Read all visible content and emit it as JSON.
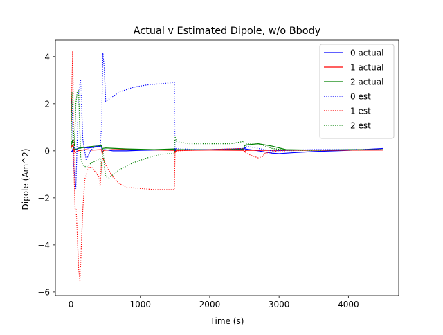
{
  "chart_data": {
    "type": "line",
    "title": "Actual v Estimated Dipole, w/o Bbody",
    "xlabel": "Time (s)",
    "ylabel": "Dipole (Am^2)",
    "xlim": [
      -225,
      4725
    ],
    "ylim": [
      -6.15,
      4.7
    ],
    "x_ticks": [
      0,
      1000,
      2000,
      3000,
      4000
    ],
    "x_tick_labels": [
      "0",
      "1000",
      "2000",
      "3000",
      "4000"
    ],
    "y_ticks": [
      -6,
      -4,
      -2,
      0,
      2,
      4
    ],
    "y_tick_labels": [
      "−6",
      "−4",
      "−2",
      "0",
      "2",
      "4"
    ],
    "grid": false,
    "legend_position": "top-right",
    "series": [
      {
        "name": "0 actual",
        "color": "#0000ff",
        "style": "solid",
        "points": [
          [
            0,
            0.0
          ],
          [
            15,
            -0.05
          ],
          [
            30,
            0.1
          ],
          [
            50,
            0.15
          ],
          [
            70,
            0.05
          ],
          [
            100,
            0.1
          ],
          [
            150,
            0.15
          ],
          [
            250,
            0.12
          ],
          [
            400,
            0.18
          ],
          [
            440,
            0.2
          ],
          [
            450,
            -0.05
          ],
          [
            480,
            0.05
          ],
          [
            600,
            0.0
          ],
          [
            800,
            0.0
          ],
          [
            1000,
            0.02
          ],
          [
            1200,
            0.03
          ],
          [
            1490,
            0.05
          ],
          [
            1500,
            0.1
          ],
          [
            1510,
            0.05
          ],
          [
            1800,
            0.05
          ],
          [
            2000,
            0.05
          ],
          [
            2200,
            0.05
          ],
          [
            2490,
            0.05
          ],
          [
            2500,
            0.15
          ],
          [
            2510,
            0.08
          ],
          [
            2700,
            0.0
          ],
          [
            2900,
            -0.1
          ],
          [
            3000,
            -0.12
          ],
          [
            3200,
            -0.08
          ],
          [
            3500,
            -0.03
          ],
          [
            3800,
            0.0
          ],
          [
            4000,
            0.02
          ],
          [
            4200,
            0.05
          ],
          [
            4500,
            0.1
          ]
        ]
      },
      {
        "name": "1 actual",
        "color": "#ff0000",
        "style": "solid",
        "points": [
          [
            0,
            0.1
          ],
          [
            20,
            0.25
          ],
          [
            40,
            0.05
          ],
          [
            60,
            -0.08
          ],
          [
            100,
            0.0
          ],
          [
            200,
            0.05
          ],
          [
            300,
            0.03
          ],
          [
            440,
            0.05
          ],
          [
            450,
            -0.12
          ],
          [
            470,
            0.02
          ],
          [
            600,
            0.05
          ],
          [
            1000,
            0.05
          ],
          [
            1490,
            0.02
          ],
          [
            1500,
            -0.08
          ],
          [
            1510,
            0.02
          ],
          [
            2000,
            0.03
          ],
          [
            2490,
            0.02
          ],
          [
            2500,
            -0.05
          ],
          [
            2520,
            0.02
          ],
          [
            3000,
            0.02
          ],
          [
            4500,
            0.03
          ]
        ]
      },
      {
        "name": "2 actual",
        "color": "#008000",
        "style": "solid",
        "points": [
          [
            0,
            0.2
          ],
          [
            20,
            0.45
          ],
          [
            40,
            0.1
          ],
          [
            60,
            0.05
          ],
          [
            100,
            0.1
          ],
          [
            200,
            0.15
          ],
          [
            350,
            0.2
          ],
          [
            440,
            0.22
          ],
          [
            450,
            0.1
          ],
          [
            500,
            0.12
          ],
          [
            800,
            0.08
          ],
          [
            1200,
            0.05
          ],
          [
            1490,
            0.08
          ],
          [
            1500,
            0.0
          ],
          [
            1510,
            0.05
          ],
          [
            2000,
            0.05
          ],
          [
            2490,
            0.08
          ],
          [
            2500,
            0.2
          ],
          [
            2520,
            0.25
          ],
          [
            2700,
            0.3
          ],
          [
            2900,
            0.2
          ],
          [
            3100,
            0.05
          ],
          [
            3500,
            0.03
          ],
          [
            4000,
            0.05
          ],
          [
            4500,
            0.05
          ]
        ]
      },
      {
        "name": "0 est",
        "color": "#0000ff",
        "style": "dotted",
        "points": [
          [
            0,
            0.8
          ],
          [
            10,
            2.2
          ],
          [
            20,
            1.8
          ],
          [
            35,
            -0.5
          ],
          [
            50,
            -1.0
          ],
          [
            70,
            -1.6
          ],
          [
            90,
            0.5
          ],
          [
            110,
            2.5
          ],
          [
            140,
            3.0
          ],
          [
            170,
            0.5
          ],
          [
            220,
            -0.4
          ],
          [
            280,
            0.0
          ],
          [
            350,
            0.2
          ],
          [
            420,
            0.2
          ],
          [
            440,
            1.0
          ],
          [
            460,
            4.15
          ],
          [
            480,
            3.5
          ],
          [
            500,
            2.1
          ],
          [
            550,
            2.2
          ],
          [
            700,
            2.5
          ],
          [
            900,
            2.7
          ],
          [
            1100,
            2.8
          ],
          [
            1300,
            2.85
          ],
          [
            1490,
            2.9
          ],
          [
            1500,
            0.0
          ],
          [
            1520,
            0.1
          ],
          [
            1800,
            0.05
          ],
          [
            2000,
            0.05
          ],
          [
            2490,
            0.1
          ],
          [
            2500,
            -0.05
          ],
          [
            2520,
            0.2
          ],
          [
            2700,
            0.1
          ],
          [
            2900,
            0.0
          ],
          [
            3100,
            0.02
          ],
          [
            3500,
            0.05
          ],
          [
            4000,
            0.05
          ],
          [
            4500,
            0.08
          ]
        ]
      },
      {
        "name": "1 est",
        "color": "#ff0000",
        "style": "dotted",
        "points": [
          [
            0,
            0.5
          ],
          [
            15,
            3.0
          ],
          [
            25,
            4.25
          ],
          [
            35,
            2.0
          ],
          [
            45,
            -1.0
          ],
          [
            60,
            -2.5
          ],
          [
            75,
            -2.5
          ],
          [
            90,
            -3.5
          ],
          [
            110,
            -5.0
          ],
          [
            130,
            -5.55
          ],
          [
            150,
            -4.0
          ],
          [
            170,
            -2.5
          ],
          [
            200,
            -1.2
          ],
          [
            250,
            -0.7
          ],
          [
            300,
            -0.7
          ],
          [
            350,
            -0.9
          ],
          [
            400,
            -1.1
          ],
          [
            420,
            -1.5
          ],
          [
            440,
            -0.5
          ],
          [
            460,
            -0.3
          ],
          [
            500,
            -0.6
          ],
          [
            600,
            -1.1
          ],
          [
            700,
            -1.4
          ],
          [
            800,
            -1.55
          ],
          [
            1000,
            -1.6
          ],
          [
            1200,
            -1.65
          ],
          [
            1490,
            -1.65
          ],
          [
            1500,
            -0.05
          ],
          [
            1520,
            0.0
          ],
          [
            2000,
            0.05
          ],
          [
            2490,
            0.1
          ],
          [
            2500,
            -0.05
          ],
          [
            2600,
            -0.2
          ],
          [
            2700,
            -0.3
          ],
          [
            2760,
            -0.25
          ],
          [
            2800,
            -0.1
          ],
          [
            3000,
            0.0
          ],
          [
            3500,
            0.02
          ],
          [
            4500,
            0.05
          ]
        ]
      },
      {
        "name": "2 est",
        "color": "#008000",
        "style": "dotted",
        "points": [
          [
            0,
            0.1
          ],
          [
            15,
            2.5
          ],
          [
            30,
            1.2
          ],
          [
            50,
            0.2
          ],
          [
            70,
            2.0
          ],
          [
            90,
            2.5
          ],
          [
            110,
            2.6
          ],
          [
            140,
            -0.3
          ],
          [
            170,
            -0.6
          ],
          [
            220,
            -0.7
          ],
          [
            300,
            -0.5
          ],
          [
            380,
            -0.4
          ],
          [
            430,
            -0.3
          ],
          [
            445,
            -1.0
          ],
          [
            460,
            0.1
          ],
          [
            480,
            -0.6
          ],
          [
            500,
            -1.1
          ],
          [
            550,
            -1.15
          ],
          [
            700,
            -0.8
          ],
          [
            900,
            -0.5
          ],
          [
            1100,
            -0.3
          ],
          [
            1300,
            -0.15
          ],
          [
            1490,
            -0.1
          ],
          [
            1500,
            0.6
          ],
          [
            1520,
            0.4
          ],
          [
            1700,
            0.3
          ],
          [
            2000,
            0.3
          ],
          [
            2300,
            0.3
          ],
          [
            2490,
            0.4
          ],
          [
            2500,
            0.15
          ],
          [
            2520,
            0.3
          ],
          [
            2700,
            0.3
          ],
          [
            2900,
            0.1
          ],
          [
            3100,
            0.03
          ],
          [
            3500,
            0.02
          ],
          [
            4000,
            0.03
          ],
          [
            4500,
            0.05
          ]
        ]
      }
    ]
  }
}
